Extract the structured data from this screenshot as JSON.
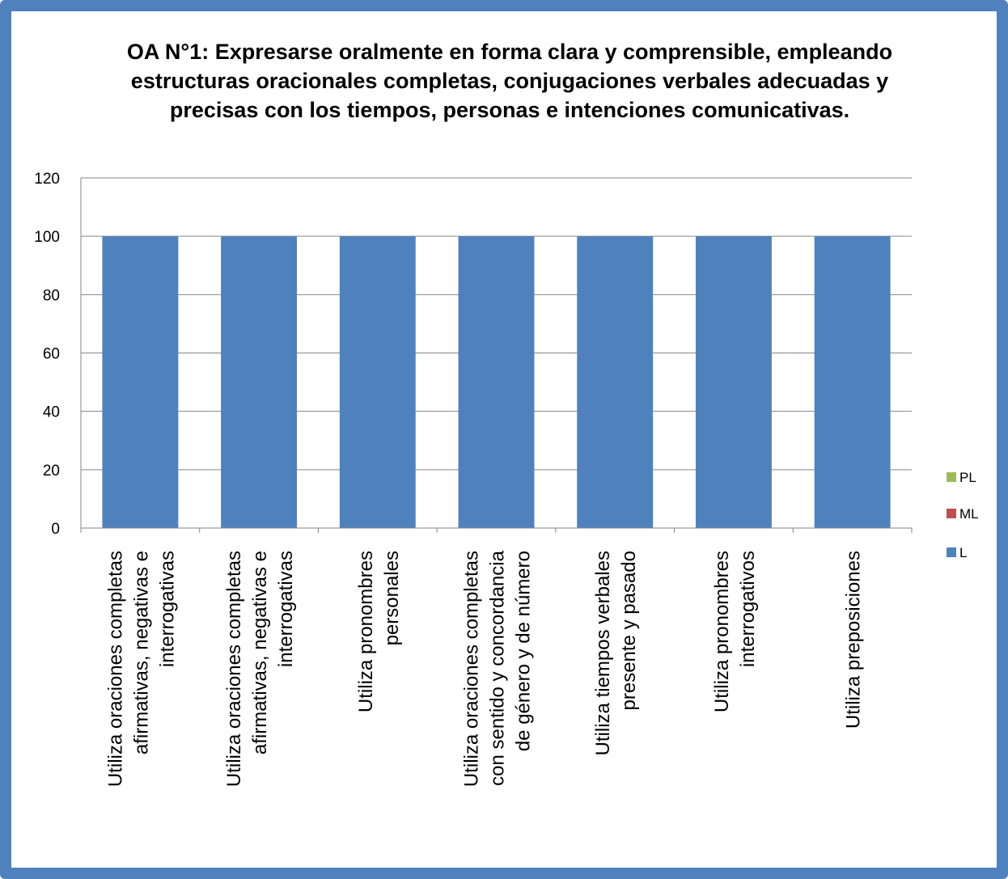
{
  "colors": {
    "frame": "#4f81bd",
    "L": "#4f81bd",
    "ML": "#c0504d",
    "PL": "#9bbb59",
    "grid": "#868686"
  },
  "chart_data": {
    "type": "bar",
    "title": "OA N°1: Expresarse oralmente en forma clara y comprensible, empleando estructuras oracionales completas, conjugaciones verbales adecuadas y precisas con los tiempos, personas e intenciones comunicativas.",
    "categories": [
      "Utiliza oraciones completas afirmativas, negativas e interrogativas",
      "Utiliza oraciones completas afirmativas, negativas e interrogativas",
      "Utiliza pronombres personales",
      "Utiliza oraciones completas con sentido y concordancia de género y de número",
      "Utiliza tiempos verbales presente y pasado",
      "Utiliza pronombres interrogativos",
      "Utiliza preposiciones"
    ],
    "category_lines": [
      [
        "Utiliza oraciones completas",
        "afirmativas, negativas e",
        "interrogativas"
      ],
      [
        "Utiliza oraciones completas",
        "afirmativas, negativas e",
        "interrogativas"
      ],
      [
        "Utiliza pronombres",
        "personales"
      ],
      [
        "Utiliza oraciones completas",
        "con sentido y concordancia",
        "de género y de número"
      ],
      [
        "Utiliza tiempos verbales",
        "presente y pasado"
      ],
      [
        "Utiliza pronombres",
        "interrogativos"
      ],
      [
        "Utiliza preposiciones"
      ]
    ],
    "series": [
      {
        "name": "L",
        "values": [
          100,
          100,
          100,
          100,
          100,
          100,
          100
        ]
      },
      {
        "name": "ML",
        "values": [
          0,
          0,
          0,
          0,
          0,
          0,
          0
        ]
      },
      {
        "name": "PL",
        "values": [
          0,
          0,
          0,
          0,
          0,
          0,
          0
        ]
      }
    ],
    "stacked": true,
    "ylim": [
      0,
      120
    ],
    "yticks": [
      0,
      20,
      40,
      60,
      80,
      100,
      120
    ],
    "grid": true,
    "legend_position": "right",
    "legend_order": [
      "PL",
      "ML",
      "L"
    ]
  }
}
